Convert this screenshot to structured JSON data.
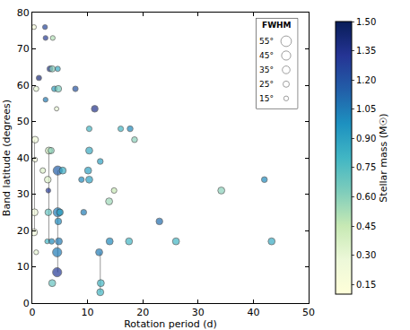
{
  "chart_data": {
    "type": "scatter",
    "marker": "circle",
    "grid": false,
    "x_label": "Rotation period (d)",
    "y_label": "Band latitude (degrees)",
    "xlim": [
      0,
      50
    ],
    "xticks": [
      0,
      10,
      20,
      30,
      40,
      50
    ],
    "ylim": [
      0,
      80
    ],
    "yticks": [
      0,
      10,
      20,
      30,
      40,
      50,
      60,
      70,
      80
    ],
    "points": {
      "x": [
        0.3,
        2.3,
        2.4,
        3.7,
        1.2,
        3.2,
        3.6,
        4.6,
        0.7,
        2.4,
        4.0,
        4.7,
        7.8,
        4.4,
        11.3,
        0.5,
        3.0,
        3.4,
        10.3,
        16.0,
        17.7,
        18.5,
        10.3,
        1.9,
        4.6,
        5.5,
        10.1,
        12.3,
        2.8,
        8.9,
        10.3,
        14.8,
        13.9,
        2.9,
        0.4,
        2.9,
        4.6,
        5.0,
        9.3,
        0.3,
        4.7,
        23.0,
        2.7,
        3.5,
        4.8,
        14.0,
        17.5,
        26.0,
        43.3,
        0.7,
        4.5,
        12.1,
        4.5,
        12.4,
        3.6,
        12.3,
        34.2,
        42.0,
        0.5
      ],
      "y": [
        76,
        76,
        73,
        73,
        62,
        64.5,
        64.5,
        64.5,
        59,
        56,
        59,
        59,
        59,
        53.5,
        53.5,
        45,
        42,
        42,
        48,
        48,
        48,
        45,
        42,
        36.5,
        36.5,
        36.5,
        36.5,
        39,
        34,
        34,
        34,
        31,
        28,
        31,
        25,
        25,
        25,
        25,
        25,
        19.5,
        22.5,
        22.5,
        17,
        17,
        17,
        17,
        17,
        17,
        17,
        14,
        14,
        14,
        8.5,
        5.5,
        5.5,
        3,
        31,
        34,
        39.5
      ],
      "fwhm": [
        15,
        15,
        15,
        15,
        18,
        22,
        25,
        18,
        18,
        15,
        20,
        28,
        20,
        12,
        28,
        28,
        30,
        25,
        20,
        20,
        22,
        22,
        30,
        20,
        45,
        30,
        30,
        22,
        28,
        20,
        30,
        20,
        30,
        15,
        30,
        28,
        45,
        28,
        22,
        30,
        28,
        28,
        15,
        20,
        30,
        30,
        30,
        30,
        30,
        15,
        45,
        30,
        45,
        30,
        30,
        30,
        30,
        22,
        15
      ],
      "mass": [
        0.2,
        1.25,
        1.3,
        0.5,
        1.4,
        1.3,
        0.6,
        0.85,
        0.3,
        1.05,
        0.9,
        0.65,
        1.2,
        0.3,
        1.35,
        0.25,
        0.4,
        0.6,
        0.8,
        0.8,
        1.0,
        0.6,
        0.85,
        0.35,
        1.15,
        0.85,
        0.9,
        0.9,
        0.35,
        1.0,
        0.9,
        0.45,
        0.55,
        1.3,
        0.25,
        0.7,
        1.05,
        0.9,
        1.05,
        0.25,
        1.0,
        1.1,
        0.8,
        1.0,
        1.05,
        1.0,
        0.8,
        0.8,
        0.85,
        0.3,
        1.05,
        1.05,
        1.3,
        0.8,
        0.7,
        0.8,
        0.6,
        1.0,
        0.2
      ]
    },
    "connectors": [
      {
        "x": 0.4,
        "y": [
          19.5,
          45
        ]
      },
      {
        "x": 3.0,
        "y": [
          17,
          42
        ]
      },
      {
        "x": 4.6,
        "y": [
          8.5,
          36.5
        ]
      },
      {
        "x": 12.3,
        "y": [
          3,
          14
        ]
      }
    ],
    "size_legend": {
      "title": "FWHM",
      "values": [
        55,
        45,
        35,
        25,
        15
      ],
      "labels": [
        "55°",
        "45°",
        "35°",
        "25°",
        "15°"
      ]
    },
    "colorbar": {
      "title": "Stellar mass (M☉)",
      "range": [
        0.1,
        1.5
      ],
      "ticks": [
        {
          "value": 0.15,
          "label": "0.15"
        },
        {
          "value": 0.3,
          "label": "0.30"
        },
        {
          "value": 0.45,
          "label": "0.45"
        },
        {
          "value": 0.6,
          "label": "0.60"
        },
        {
          "value": 0.75,
          "label": "0.75"
        },
        {
          "value": 0.9,
          "label": "0.90"
        },
        {
          "value": 1.05,
          "label": "1.05"
        },
        {
          "value": 1.2,
          "label": "1.20"
        },
        {
          "value": 1.35,
          "label": "1.35"
        },
        {
          "value": 1.5,
          "label": "1.50"
        }
      ]
    }
  }
}
